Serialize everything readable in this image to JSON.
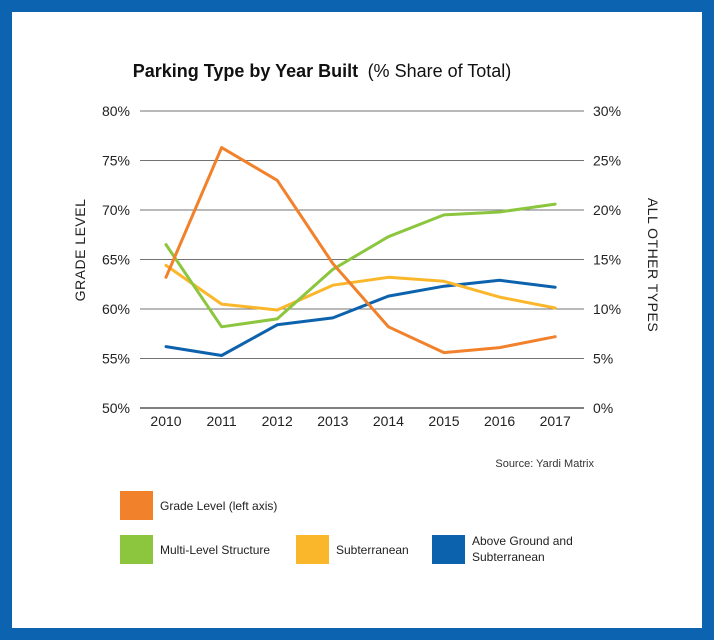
{
  "chart_data": {
    "type": "line",
    "title": "Parking Type by Year Built",
    "subtitle": "(% Share of Total)",
    "ylabel_left": "GRADE LEVEL",
    "ylabel_right": "ALL OTHER TYPES",
    "x": [
      "2010",
      "2011",
      "2012",
      "2013",
      "2014",
      "2015",
      "2016",
      "2017"
    ],
    "yticks_left": [
      "80%",
      "75%",
      "70%",
      "65%",
      "60%",
      "55%",
      "50%"
    ],
    "yticks_right": [
      "30%",
      "25%",
      "20%",
      "15%",
      "10%",
      "5%",
      "0%"
    ],
    "ylim_left": [
      50,
      80
    ],
    "ylim_right": [
      0,
      30
    ],
    "grid": true,
    "source": "Source: Yardi Matrix",
    "series": [
      {
        "name": "Grade Level (left axis)",
        "axis": "left",
        "color": "#f2812b",
        "values": [
          63.2,
          76.3,
          73.0,
          64.6,
          58.2,
          55.6,
          56.1,
          57.2
        ]
      },
      {
        "name": "Multi-Level Structure",
        "axis": "right",
        "color": "#8cc63f",
        "values": [
          16.5,
          8.2,
          9.0,
          14.0,
          17.3,
          19.5,
          19.8,
          20.6
        ]
      },
      {
        "name": "Subterranean",
        "axis": "right",
        "color": "#fbb72b",
        "values": [
          14.4,
          10.5,
          9.9,
          12.4,
          13.2,
          12.8,
          11.2,
          10.1
        ]
      },
      {
        "name": "Above Ground and Subterranean",
        "axis": "right",
        "color": "#0d62ad",
        "values": [
          6.2,
          5.3,
          8.4,
          9.1,
          11.3,
          12.3,
          12.9,
          12.2
        ]
      }
    ],
    "legend": [
      {
        "label": "Grade Level (left axis)",
        "color": "#f2812b"
      },
      {
        "label": "Multi-Level Structure",
        "color": "#8cc63f"
      },
      {
        "label": "Subterranean",
        "color": "#fbb72b"
      },
      {
        "label": "Above Ground and",
        "label2": "Subterranean",
        "color": "#0d62ad"
      }
    ]
  }
}
